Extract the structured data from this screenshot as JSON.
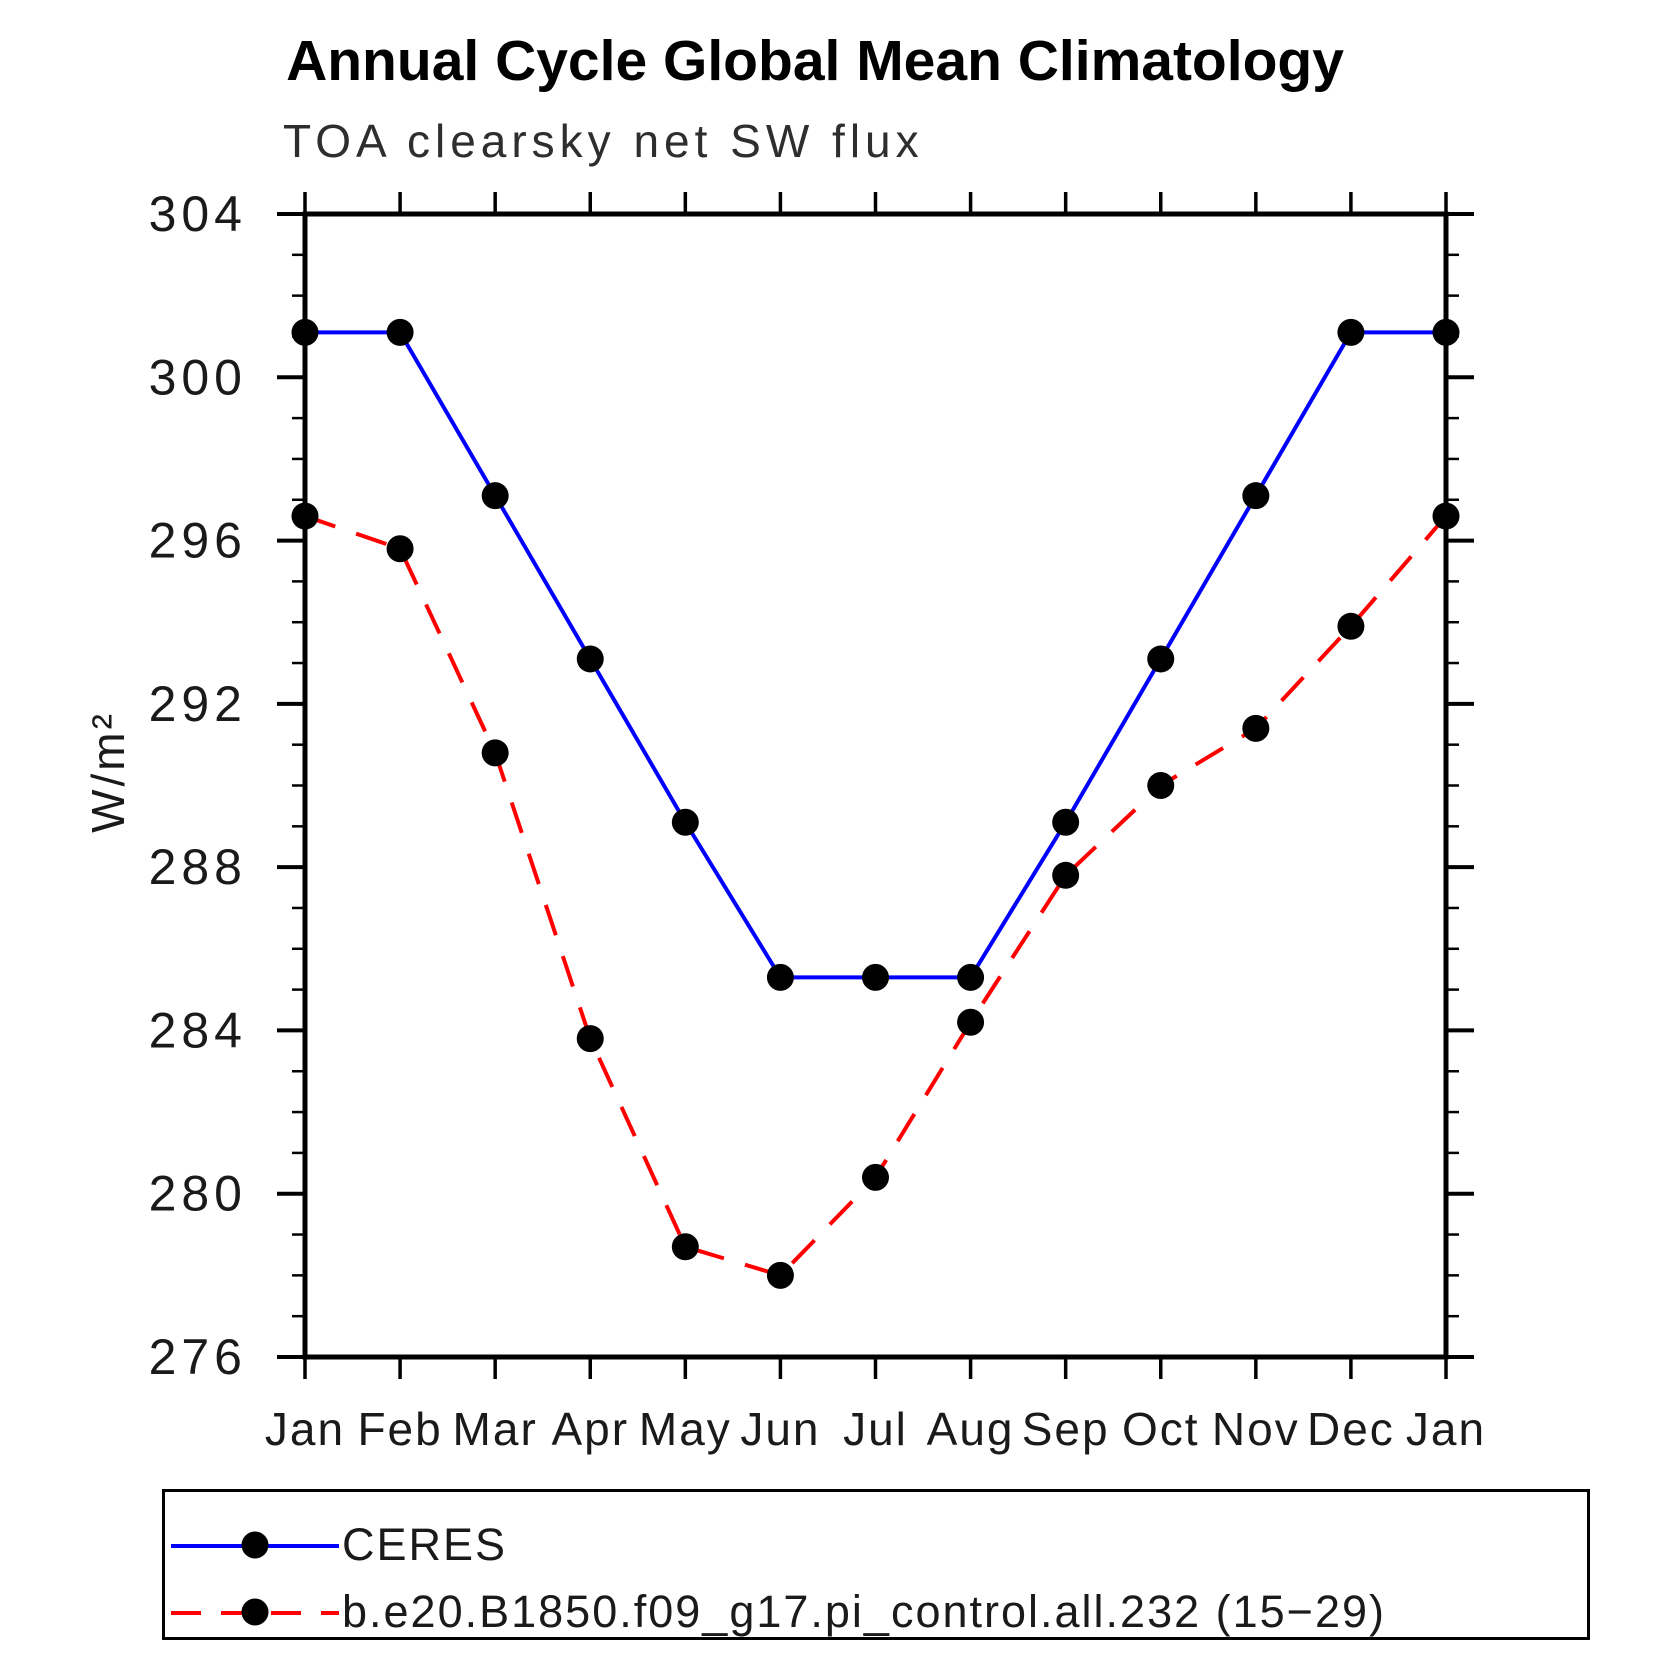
{
  "chart_data": {
    "type": "line",
    "title": "Annual Cycle Global Mean Climatology",
    "subtitle": "TOA clearsky net SW flux",
    "ylabel": "W/m²",
    "xlabel": "",
    "categories": [
      "Jan",
      "Feb",
      "Mar",
      "Apr",
      "May",
      "Jun",
      "Jul",
      "Aug",
      "Sep",
      "Oct",
      "Nov",
      "Dec",
      "Jan"
    ],
    "ylim": [
      276,
      304
    ],
    "y_ticks": [
      276,
      280,
      284,
      288,
      292,
      296,
      300,
      304
    ],
    "ytick_minor_step": 1,
    "grid": "off",
    "legend_position": "bottom",
    "series": [
      {
        "name": "CERES",
        "color": "#0000ff",
        "style": "solid",
        "marker": "circle",
        "marker_color": "#000000",
        "values": [
          301.1,
          301.1,
          297.1,
          293.1,
          289.1,
          285.3,
          285.3,
          285.3,
          289.1,
          293.1,
          297.1,
          301.1,
          301.1
        ]
      },
      {
        "name": "b.e20.B1850.f09_g17.pi_control.all.232 (15−29)",
        "color": "#ff0000",
        "style": "dashed",
        "marker": "circle",
        "marker_color": "#000000",
        "values": [
          296.6,
          295.8,
          290.8,
          283.8,
          278.7,
          278.0,
          280.4,
          284.2,
          287.8,
          290.0,
          291.4,
          293.9,
          296.6
        ]
      }
    ]
  }
}
